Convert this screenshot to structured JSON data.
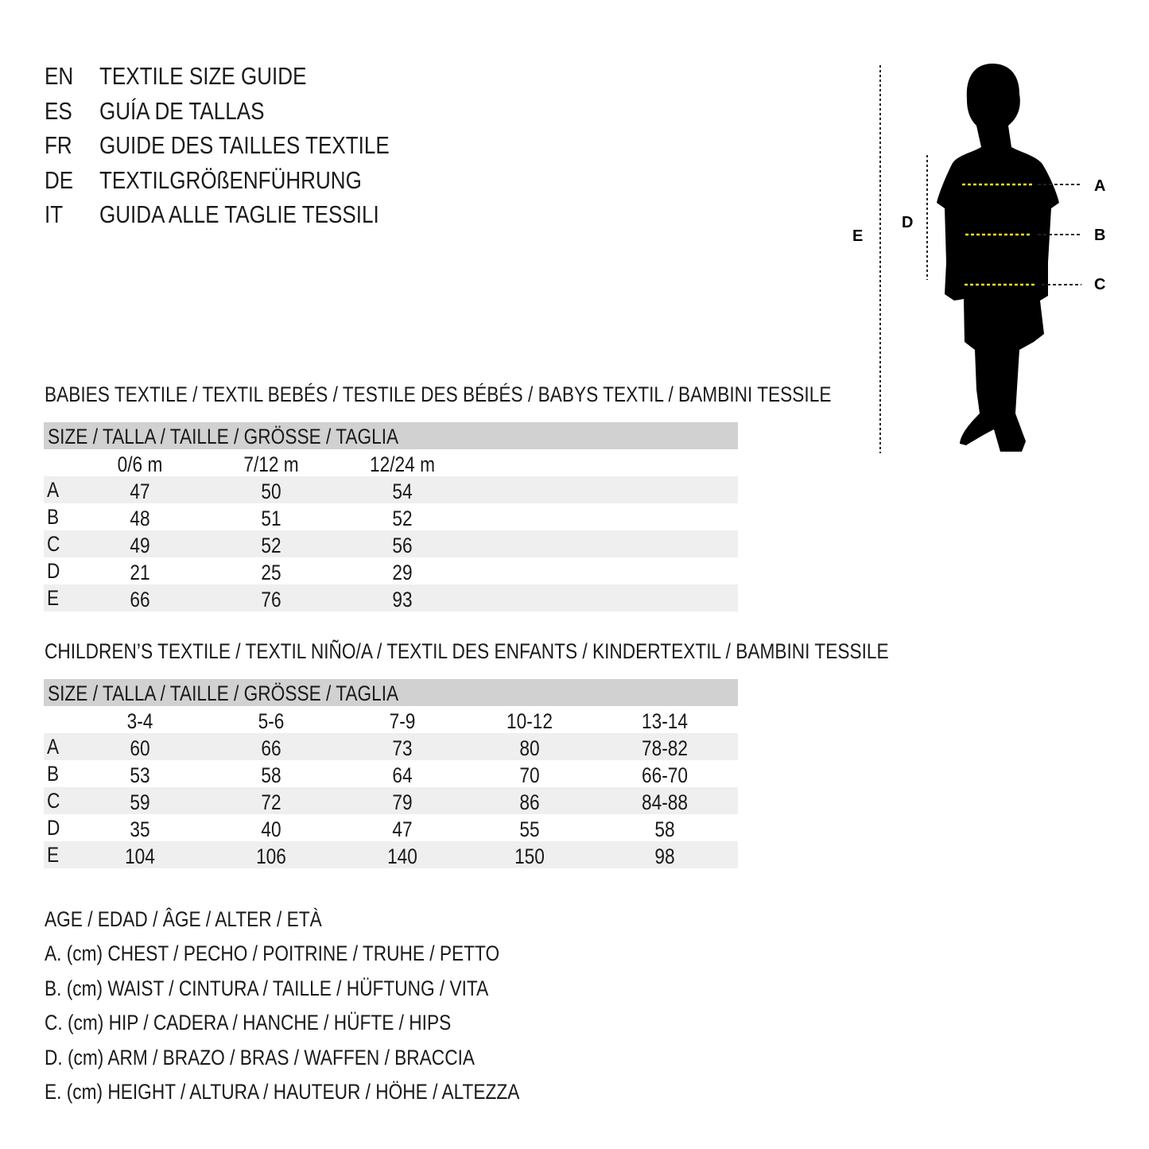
{
  "titles": [
    {
      "lang": "EN",
      "text": "TEXTILE SIZE GUIDE"
    },
    {
      "lang": "ES",
      "text": "GUÍA DE TALLAS"
    },
    {
      "lang": "FR",
      "text": "GUIDE DES TAILLES TEXTILE"
    },
    {
      "lang": "DE",
      "text": "TEXTILGRÖßENFÜHRUNG"
    },
    {
      "lang": "IT",
      "text": "GUIDA ALLE TAGLIE TESSILI"
    }
  ],
  "figure": {
    "labels": {
      "A": "A",
      "B": "B",
      "C": "C",
      "D": "D",
      "E": "E"
    },
    "highlight_color": "#f2e01c"
  },
  "babies": {
    "heading": "BABIES TEXTILE / TEXTIL BEBÉS / TESTILE DES BÉBÉS / BABYS TEXTIL / BAMBINI TESSILE",
    "size_header": "SIZE / TALLA / TAILLE / GRÖSSE / TAGLIA",
    "columns": [
      "0/6 m",
      "7/12 m",
      "12/24 m"
    ],
    "rows": [
      {
        "label": "A",
        "values": [
          "47",
          "50",
          "54"
        ]
      },
      {
        "label": "B",
        "values": [
          "48",
          "51",
          "52"
        ]
      },
      {
        "label": "C",
        "values": [
          "49",
          "52",
          "56"
        ]
      },
      {
        "label": "D",
        "values": [
          "21",
          "25",
          "29"
        ]
      },
      {
        "label": "E",
        "values": [
          "66",
          "76",
          "93"
        ]
      }
    ]
  },
  "children": {
    "heading": "CHILDREN’S TEXTILE / TEXTIL NIÑO/A / TEXTIL DES ENFANTS / KINDERTEXTIL / BAMBINI TESSILE",
    "size_header": "SIZE / TALLA / TAILLE / GRÖSSE / TAGLIA",
    "columns": [
      "3-4",
      "5-6",
      "7-9",
      "10-12",
      "13-14"
    ],
    "rows": [
      {
        "label": "A",
        "values": [
          "60",
          "66",
          "73",
          "80",
          "78-82"
        ]
      },
      {
        "label": "B",
        "values": [
          "53",
          "58",
          "64",
          "70",
          "66-70"
        ]
      },
      {
        "label": "C",
        "values": [
          "59",
          "72",
          "79",
          "86",
          "84-88"
        ]
      },
      {
        "label": "D",
        "values": [
          "35",
          "40",
          "47",
          "55",
          "58"
        ]
      },
      {
        "label": "E",
        "values": [
          "104",
          "106",
          "140",
          "150",
          "98"
        ]
      }
    ]
  },
  "legend": [
    "AGE / EDAD / ÂGE / ALTER / ETÀ",
    "A. (cm) CHEST / PECHO / POITRINE / TRUHE / PETTO",
    "B. (cm) WAIST / CINTURA / TAILLE / HÜFTUNG / VITA",
    "C. (cm) HIP / CADERA / HANCHE / HÜFTE / HIPS",
    "D. (cm) ARM / BRAZO / BRAS / WAFFEN / BRACCIA",
    "E. (cm) HEIGHT / ALTURA / HAUTEUR / HÖHE / ALTEZZA"
  ]
}
